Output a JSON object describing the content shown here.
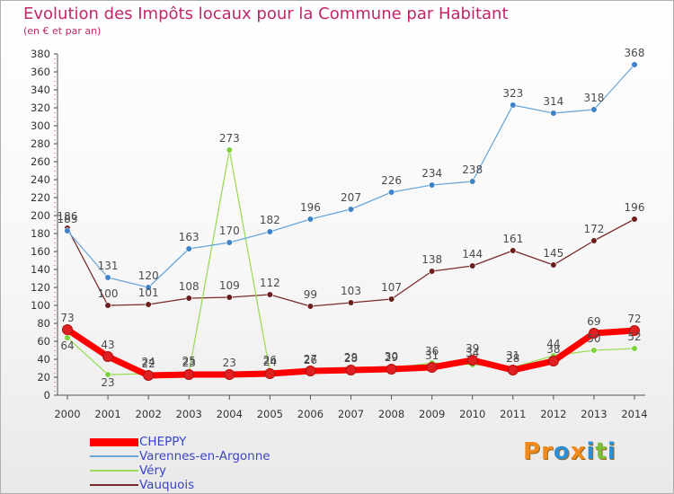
{
  "title": "Evolution des Impôts locaux pour la Commune par Habitant",
  "subtitle": "(en € et par an)",
  "logo": {
    "text": "Proxiti",
    "letters": [
      "P",
      "r",
      "o",
      "x",
      "i",
      "t",
      "i"
    ],
    "colors": [
      "#f08a1c",
      "#f08a1c",
      "#2a8fd6",
      "#f08a1c",
      "#2a8fd6",
      "#7bbf3a",
      "#2a8fd6"
    ]
  },
  "chart_data": {
    "type": "line",
    "categories": [
      "2000",
      "2001",
      "2002",
      "2003",
      "2004",
      "2005",
      "2006",
      "2007",
      "2008",
      "2009",
      "2010",
      "2011",
      "2012",
      "2013",
      "2014"
    ],
    "ylim": [
      0,
      380
    ],
    "yticks": [
      0,
      20,
      40,
      60,
      80,
      100,
      120,
      140,
      160,
      180,
      200,
      220,
      240,
      260,
      280,
      300,
      320,
      340,
      360,
      380
    ],
    "grid": false,
    "legend_position": "bottom-left",
    "series": [
      {
        "name": "CHEPPY",
        "color": "#ff0000",
        "marker": "#e02020",
        "width": 7,
        "values": [
          73,
          43,
          22,
          23,
          23,
          24,
          27,
          28,
          29,
          31,
          39,
          28,
          38,
          69,
          72
        ],
        "labels": [
          "73",
          "43",
          "22",
          "23",
          "23",
          "24",
          "27",
          "28",
          "29",
          "31",
          "39",
          "28",
          "38",
          "69",
          "72"
        ]
      },
      {
        "name": "Varennes-en-Argonne",
        "color": "#6aa7d9",
        "marker": "#3f83c6",
        "width": 1.3,
        "values": [
          183,
          131,
          120,
          163,
          170,
          182,
          196,
          207,
          226,
          234,
          238,
          323,
          314,
          318,
          368
        ],
        "labels": [
          "183",
          "131",
          "120",
          "163",
          "170",
          "182",
          "196",
          "207",
          "226",
          "234",
          "238",
          "323",
          "314",
          "318",
          "368"
        ]
      },
      {
        "name": "Véry",
        "color": "#9ddc5a",
        "marker": "#7ed23c",
        "width": 1.3,
        "values": [
          64,
          23,
          24,
          25,
          273,
          26,
          26,
          29,
          30,
          36,
          34,
          31,
          44,
          50,
          52
        ],
        "labels": [
          "64",
          "23",
          "24",
          "25",
          "273",
          "26",
          "26",
          "29",
          "30",
          "36",
          "34",
          "31",
          "44",
          "50",
          "52"
        ]
      },
      {
        "name": "Vauquois",
        "color": "#7a2a2a",
        "marker": "#6a1e1e",
        "width": 1.3,
        "values": [
          186,
          100,
          101,
          108,
          109,
          112,
          99,
          103,
          107,
          138,
          144,
          161,
          145,
          172,
          196
        ],
        "labels": [
          "186",
          "100",
          "101",
          "108",
          "109",
          "112",
          "99",
          "103",
          "107",
          "138",
          "144",
          "161",
          "145",
          "172",
          "196"
        ]
      }
    ]
  }
}
